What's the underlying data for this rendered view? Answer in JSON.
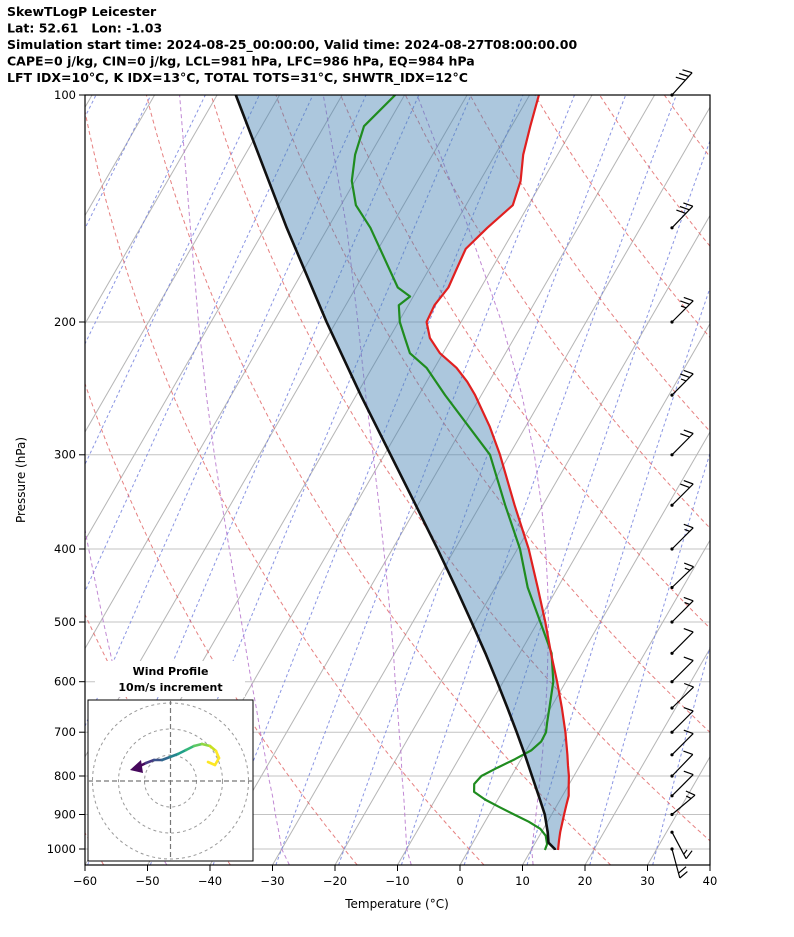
{
  "header": {
    "title": "SkewTLogP Leicester",
    "location": "Lat: 52.61   Lon: -1.03",
    "sim_time": "Simulation start time: 2024-08-25_00:00:00, Valid time: 2024-08-27T08:00:00.00",
    "indices1": "CAPE=0 j/kg, CIN=0 j/kg, LCL=981 hPa, LFC=986 hPa, EQ=984 hPa",
    "indices2": "LFT IDX=10°C, K IDX=13°C, TOTAL TOTS=31°C, SHWTR_IDX=12°C"
  },
  "axes": {
    "x_label": "Temperature (°C)",
    "y_label": "Pressure (hPa)",
    "x_ticks": [
      -60,
      -50,
      -40,
      -30,
      -20,
      -10,
      0,
      10,
      20,
      30,
      40
    ],
    "y_ticks": [
      100,
      200,
      300,
      400,
      500,
      600,
      700,
      800,
      900,
      1000
    ],
    "x_range": [
      -60,
      40
    ],
    "p_range": [
      100,
      1050
    ]
  },
  "inset": {
    "title1": "Wind Profile",
    "title2": "10m/s increment"
  },
  "chart_data": {
    "type": "skewt-logp",
    "title": "SkewTLogP Leicester",
    "xlabel": "Temperature (°C)",
    "ylabel": "Pressure (hPa)",
    "skew_rotation_deg": 30,
    "temperature_profile": {
      "pressure": [
        1003,
        975,
        950,
        925,
        900,
        875,
        850,
        825,
        800,
        775,
        750,
        700,
        650,
        600,
        550,
        500,
        450,
        400,
        350,
        300,
        275,
        250,
        240,
        230,
        220,
        210,
        200,
        190,
        180,
        170,
        160,
        150,
        140,
        130,
        120,
        110,
        100
      ],
      "temp": [
        14.3,
        13.6,
        13.0,
        12.5,
        12.0,
        11.5,
        11.0,
        10.1,
        9.2,
        8.1,
        7.0,
        4.6,
        1.8,
        -1.4,
        -5.0,
        -8.8,
        -13.2,
        -18.2,
        -24.5,
        -31.5,
        -35.8,
        -41.0,
        -43.5,
        -46.5,
        -50.5,
        -53.5,
        -55.5,
        -55.8,
        -55.2,
        -55.6,
        -56.0,
        -54.5,
        -52.5,
        -53.5,
        -55.5,
        -57.0,
        -58.5
      ]
    },
    "dewpoint_profile": {
      "pressure": [
        1003,
        985,
        960,
        940,
        920,
        900,
        880,
        860,
        840,
        820,
        800,
        780,
        760,
        740,
        720,
        700,
        680,
        650,
        600,
        550,
        500,
        450,
        400,
        350,
        300,
        250,
        230,
        220,
        210,
        200,
        190,
        185,
        180,
        170,
        160,
        150,
        140,
        130,
        120,
        110,
        100
      ],
      "temp": [
        12.2,
        12.0,
        11.0,
        9.5,
        7.0,
        4.0,
        1.0,
        -2.0,
        -4.5,
        -5.2,
        -4.8,
        -3.0,
        -1.0,
        0.8,
        1.6,
        1.5,
        0.8,
        -0.2,
        -2.0,
        -4.9,
        -9.6,
        -14.8,
        -19.6,
        -26.0,
        -33.1,
        -45.8,
        -51.3,
        -55.3,
        -57.5,
        -59.8,
        -61.5,
        -60.5,
        -63.3,
        -66.4,
        -69.7,
        -73.2,
        -77.6,
        -80.5,
        -82.4,
        -83.6,
        -81.5
      ]
    },
    "parcel_profile": {
      "pressure": [
        1003,
        1000,
        981,
        950,
        900,
        850,
        800,
        750,
        700,
        650,
        600,
        550,
        500,
        450,
        400,
        350,
        300,
        250,
        200,
        150,
        100
      ],
      "temp": [
        13.8,
        13.7,
        12.1,
        11.0,
        8.9,
        6.2,
        3.3,
        0.2,
        -3.2,
        -6.9,
        -11.0,
        -15.5,
        -20.6,
        -26.3,
        -32.8,
        -40.3,
        -49.0,
        -59.3,
        -71.5,
        -86.6,
        -107.0
      ]
    },
    "dry_adiabats_theta": [
      -60,
      -40,
      -20,
      0,
      20,
      40,
      60,
      80,
      100,
      120,
      140,
      160,
      180
    ],
    "humidity_lines_t0": [
      -120,
      -110,
      -100,
      -90,
      -80,
      -70,
      -60,
      -50,
      -40,
      -30,
      -20,
      -10,
      0,
      10,
      20,
      30,
      40
    ],
    "moist_adiabats": [
      {
        "pressure": [
          1050,
          1000,
          950,
          900,
          850,
          800,
          750,
          700,
          650,
          600,
          550,
          500,
          450,
          400,
          350,
          300,
          250,
          200,
          150,
          100
        ],
        "temp": [
          11.7,
          10,
          8.8,
          7.5,
          6.1,
          4.6,
          3.0,
          1.2,
          -0.8,
          -3.0,
          -5.5,
          -8.3,
          -11.6,
          -15.5,
          -20.2,
          -26.0,
          -33.5,
          -43.5,
          -57.5,
          -78.0
        ]
      },
      {
        "pressure": [
          1050,
          1000,
          950,
          900,
          850,
          800,
          750,
          700,
          650,
          600,
          550,
          500,
          450,
          400,
          350,
          300,
          250,
          200,
          150,
          100
        ],
        "temp": [
          -7.8,
          -10,
          -11.7,
          -13.5,
          -15.4,
          -17.5,
          -19.6,
          -22.0,
          -24.5,
          -27.3,
          -30.2,
          -33.5,
          -37.2,
          -41.4,
          -46.2,
          -51.8,
          -58.5,
          -66.5,
          -77.0,
          -93.0
        ]
      },
      {
        "pressure": [
          1050,
          1000,
          950,
          900,
          850,
          800,
          750,
          700,
          650,
          600,
          550,
          500,
          450,
          400,
          350,
          300,
          250,
          200,
          150,
          100
        ],
        "temp": [
          -27.3,
          -30,
          -32.0,
          -34.2,
          -36.4,
          -38.9,
          -41.4,
          -44.2,
          -47.1,
          -50.3,
          -53.7,
          -57.4,
          -61.5,
          -66.1,
          -71.3,
          -77.2,
          -84.0,
          -92.0,
          -102.0,
          -116.0
        ]
      },
      {
        "pressure": [
          1050,
          1000,
          950,
          900,
          850,
          800,
          750,
          700,
          650,
          600,
          550,
          500,
          450,
          400,
          350,
          300,
          250,
          200,
          150,
          100
        ],
        "temp": [
          -46.9,
          -50,
          -52.2,
          -54.6,
          -57.0,
          -59.7,
          -62.4,
          -65.4,
          -68.5,
          -71.9,
          -75.5,
          -79.5,
          -83.8,
          -88.6,
          -94.0,
          -100.0,
          -106.8,
          -115.0,
          -125.0,
          -138.0
        ]
      }
    ],
    "wind_barbs": [
      {
        "p": 100,
        "kt": 30,
        "dir": 48
      },
      {
        "p": 150,
        "kt": 30,
        "dir": 46
      },
      {
        "p": 200,
        "kt": 25,
        "dir": 45
      },
      {
        "p": 250,
        "kt": 25,
        "dir": 45
      },
      {
        "p": 300,
        "kt": 20,
        "dir": 45
      },
      {
        "p": 350,
        "kt": 20,
        "dir": 45
      },
      {
        "p": 400,
        "kt": 15,
        "dir": 45
      },
      {
        "p": 450,
        "kt": 15,
        "dir": 44
      },
      {
        "p": 500,
        "kt": 15,
        "dir": 45
      },
      {
        "p": 550,
        "kt": 10,
        "dir": 45
      },
      {
        "p": 600,
        "kt": 10,
        "dir": 45
      },
      {
        "p": 650,
        "kt": 10,
        "dir": 44
      },
      {
        "p": 700,
        "kt": 10,
        "dir": 45
      },
      {
        "p": 750,
        "kt": 10,
        "dir": 45
      },
      {
        "p": 800,
        "kt": 10,
        "dir": 46
      },
      {
        "p": 850,
        "kt": 10,
        "dir": 45
      },
      {
        "p": 900,
        "kt": 15,
        "dir": 40
      },
      {
        "p": 950,
        "kt": 15,
        "dir": -62
      },
      {
        "p": 1000,
        "kt": 20,
        "dir": -75
      }
    ],
    "hodograph": {
      "center": [
        170.5,
        781
      ],
      "radii": [
        26,
        52,
        78
      ],
      "points": [
        [
          136,
          768
        ],
        [
          146,
          763
        ],
        [
          154,
          760
        ],
        [
          162,
          760
        ],
        [
          170,
          757
        ],
        [
          178,
          754
        ],
        [
          186,
          750
        ],
        [
          194,
          746
        ],
        [
          202,
          744
        ],
        [
          210,
          746
        ],
        [
          216,
          751
        ],
        [
          219,
          758
        ],
        [
          215,
          765
        ],
        [
          208,
          762
        ]
      ],
      "colors": [
        "#46085c",
        "#453781",
        "#3b528b",
        "#31688e",
        "#26828e",
        "#1f9e89",
        "#35b779",
        "#5ec962",
        "#90d743",
        "#c8e020",
        "#fde725",
        "#fde725",
        "#fde725"
      ],
      "arrow": [
        [
          130,
          770
        ],
        [
          141,
          760
        ],
        [
          143,
          773
        ]
      ]
    },
    "colors": {
      "isotherm": "#b5b5b5",
      "isobar": "#c3c3c3",
      "dry_adiabat": "#e06060",
      "moist_adiabat": "#b26cc9",
      "humidity_line": "#7583de",
      "temperature": "#e02020",
      "dewpoint": "#1f8c1f",
      "parcel": "#111111",
      "cape_shade": "rgba(70,130,180,0.45)",
      "barb": "#000000"
    }
  }
}
